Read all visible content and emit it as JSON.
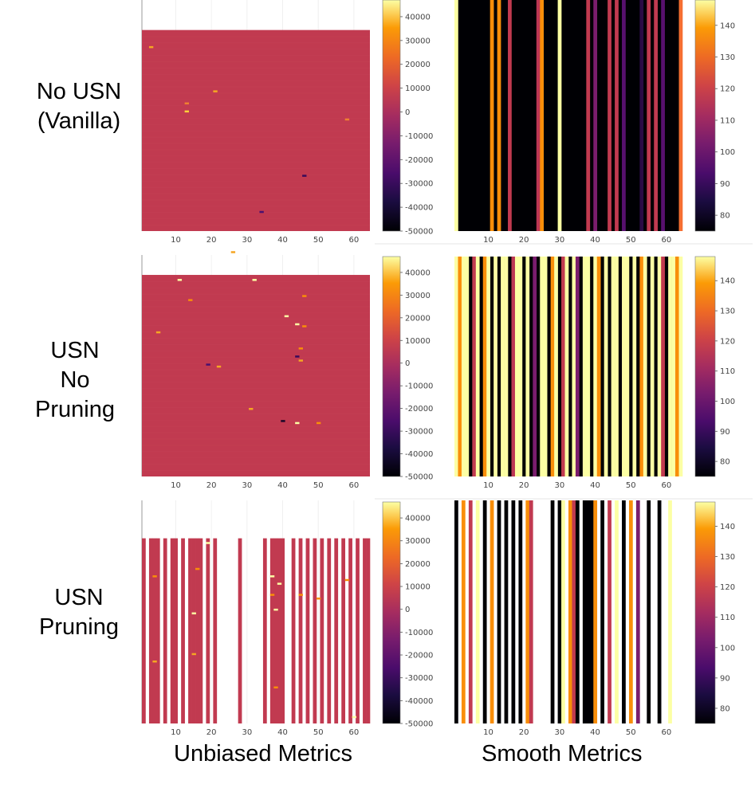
{
  "columns": [
    "Unbiased Metrics",
    "Smooth Metrics"
  ],
  "rows": [
    {
      "label_lines": [
        "No USN",
        "(Vanilla)"
      ]
    },
    {
      "label_lines": [
        "USN",
        "No",
        "Pruning"
      ]
    },
    {
      "label_lines": [
        "USN",
        "Pruning"
      ]
    }
  ],
  "chart_data": [
    {
      "type": "heatmap",
      "title": "No USN (Vanilla) - Unbiased Metrics",
      "x_ticks": [
        10,
        20,
        30,
        40,
        50,
        60
      ],
      "xlim": [
        1,
        64
      ],
      "colorbar": {
        "ticks": [
          "40000",
          "30000",
          "20000",
          "10000",
          "0",
          "-10000",
          "-20000",
          "-30000",
          "-40000",
          "-50000"
        ],
        "range": [
          -50000,
          47000
        ]
      },
      "fill_fraction": 0.87,
      "pruned_columns": [],
      "base_color": "#c13a50",
      "speckles": [
        [
          3,
          8,
          "#f5a623"
        ],
        [
          13,
          40,
          "#ffd23a"
        ],
        [
          13,
          36,
          "#f08030"
        ],
        [
          21,
          30,
          "#f5a623"
        ],
        [
          46,
          72,
          "#3a0a5a"
        ],
        [
          58,
          44,
          "#f08030"
        ],
        [
          34,
          90,
          "#4a1070"
        ],
        [
          26,
          110,
          "#f5a623"
        ]
      ]
    },
    {
      "type": "heatmap",
      "title": "No USN (Vanilla) - Smooth Metrics",
      "x_ticks": [
        10,
        20,
        30,
        40,
        50,
        60
      ],
      "xlim": [
        1,
        64
      ],
      "colorbar": {
        "ticks": [
          "140",
          "130",
          "120",
          "110",
          "100",
          "90",
          "80"
        ],
        "range": [
          75,
          148
        ]
      },
      "stripes": {
        "background": "#000004",
        "columns": [
          [
            1,
            "#fcffa4"
          ],
          [
            11,
            "#f98e09"
          ],
          [
            13,
            "#f98e09"
          ],
          [
            16,
            "#c13a50"
          ],
          [
            24,
            "#bc3754"
          ],
          [
            25,
            "#f98e09"
          ],
          [
            30,
            "#fcffa4"
          ],
          [
            38,
            "#c13a50"
          ],
          [
            40,
            "#7a1d6d"
          ],
          [
            44,
            "#c13a50"
          ],
          [
            46,
            "#c13a50"
          ],
          [
            48,
            "#57106e"
          ],
          [
            53,
            "#2b0b45"
          ],
          [
            55,
            "#c13a50"
          ],
          [
            57,
            "#c13a50"
          ],
          [
            59,
            "#57106e"
          ],
          [
            64,
            "#f56e31"
          ]
        ]
      }
    },
    {
      "type": "heatmap",
      "title": "USN No Pruning - Unbiased Metrics",
      "x_ticks": [
        10,
        20,
        30,
        40,
        50,
        60
      ],
      "xlim": [
        1,
        64
      ],
      "colorbar": {
        "ticks": [
          "40000",
          "30000",
          "20000",
          "10000",
          "0",
          "-10000",
          "-20000",
          "-30000",
          "-40000",
          "-50000"
        ],
        "range": [
          -50000,
          47000
        ]
      },
      "fill_fraction": 0.91,
      "pruned_columns": [],
      "base_color": "#c13a50",
      "speckles": [
        [
          11,
          2,
          "#fcffa4"
        ],
        [
          32,
          2,
          "#fcffa4"
        ],
        [
          14,
          12,
          "#f98e09"
        ],
        [
          46,
          10,
          "#f98e09"
        ],
        [
          46,
          25,
          "#f98e09"
        ],
        [
          44,
          24,
          "#fcffa4"
        ],
        [
          41,
          20,
          "#fcffa4"
        ],
        [
          45,
          36,
          "#f98e09"
        ],
        [
          44,
          40,
          "#3a0a5a"
        ],
        [
          45,
          42,
          "#f5a623"
        ],
        [
          22,
          45,
          "#f5a623"
        ],
        [
          31,
          66,
          "#f5a623"
        ],
        [
          40,
          72,
          "#1a0628"
        ],
        [
          44,
          73,
          "#fcffa4"
        ],
        [
          50,
          73,
          "#f98e09"
        ],
        [
          5,
          28,
          "#f5a623"
        ],
        [
          19,
          44,
          "#4a1070"
        ]
      ]
    },
    {
      "type": "heatmap",
      "title": "USN No Pruning - Smooth Metrics",
      "x_ticks": [
        10,
        20,
        30,
        40,
        50,
        60
      ],
      "xlim": [
        1,
        64
      ],
      "colorbar": {
        "ticks": [
          "140",
          "130",
          "120",
          "110",
          "100",
          "90",
          "80"
        ],
        "range": [
          75,
          148
        ]
      },
      "stripes": {
        "background": "#000004",
        "columns": [
          [
            1,
            "#fcffa4"
          ],
          [
            2,
            "#f98e09"
          ],
          [
            3,
            "#fcffa4"
          ],
          [
            4,
            "#fcffa4"
          ],
          [
            6,
            "#c13a50"
          ],
          [
            7,
            "#fcffa4"
          ],
          [
            9,
            "#f98e09"
          ],
          [
            10,
            "#fcffa4"
          ],
          [
            12,
            "#fcffa4"
          ],
          [
            14,
            "#fcffa4"
          ],
          [
            15,
            "#fcffa4"
          ],
          [
            17,
            "#bc3754"
          ],
          [
            18,
            "#fcffa4"
          ],
          [
            19,
            "#fcffa4"
          ],
          [
            21,
            "#fcffa4"
          ],
          [
            23,
            "#7a1d6d"
          ],
          [
            25,
            "#fcffa4"
          ],
          [
            26,
            "#fcffa4"
          ],
          [
            28,
            "#f98e09"
          ],
          [
            29,
            "#fcffa4"
          ],
          [
            31,
            "#c13a50"
          ],
          [
            32,
            "#fcffa4"
          ],
          [
            34,
            "#fcffa4"
          ],
          [
            35,
            "#7a1d6d"
          ],
          [
            37,
            "#fcffa4"
          ],
          [
            38,
            "#fcffa4"
          ],
          [
            40,
            "#fcffa4"
          ],
          [
            41,
            "#f98e09"
          ],
          [
            43,
            "#fcffa4"
          ],
          [
            45,
            "#fcffa4"
          ],
          [
            46,
            "#fcffa4"
          ],
          [
            48,
            "#fcffa4"
          ],
          [
            49,
            "#fcffa4"
          ],
          [
            51,
            "#fcffa4"
          ],
          [
            53,
            "#f98e09"
          ],
          [
            54,
            "#fcffa4"
          ],
          [
            56,
            "#fcffa4"
          ],
          [
            58,
            "#fcffa4"
          ],
          [
            59,
            "#c13a50"
          ],
          [
            61,
            "#fcffa4"
          ],
          [
            62,
            "#fcffa4"
          ],
          [
            63,
            "#f98e09"
          ],
          [
            64,
            "#fcffa4"
          ]
        ]
      }
    },
    {
      "type": "heatmap",
      "title": "USN Pruning - Unbiased Metrics",
      "x_ticks": [
        10,
        20,
        30,
        40,
        50,
        60
      ],
      "xlim": [
        1,
        64
      ],
      "colorbar": {
        "ticks": [
          "40000",
          "30000",
          "20000",
          "10000",
          "0",
          "-10000",
          "-20000",
          "-30000",
          "-40000",
          "-50000"
        ],
        "range": [
          -50000,
          47000
        ]
      },
      "fill_fraction": 0.83,
      "base_color": "#c13a50",
      "pruned_columns": [
        2,
        6,
        8,
        11,
        13,
        18,
        20,
        22,
        23,
        24,
        25,
        26,
        27,
        29,
        30,
        31,
        32,
        33,
        34,
        36,
        41,
        42,
        44,
        46,
        48,
        50,
        52,
        54,
        56,
        58,
        60,
        62
      ],
      "speckles": [
        [
          4,
          20,
          "#f98e09"
        ],
        [
          16,
          16,
          "#f98e09"
        ],
        [
          15,
          40,
          "#fcffa4"
        ],
        [
          19,
          2,
          "#fcffa4"
        ],
        [
          37,
          20,
          "#fcffa4"
        ],
        [
          39,
          24,
          "#fcffa4"
        ],
        [
          37,
          30,
          "#f98e09"
        ],
        [
          45,
          30,
          "#f98e09"
        ],
        [
          38,
          38,
          "#fcffa4"
        ],
        [
          50,
          32,
          "#f98e09"
        ],
        [
          58,
          22,
          "#f98e09"
        ],
        [
          4,
          66,
          "#f5a623"
        ],
        [
          15,
          62,
          "#f5a623"
        ],
        [
          38,
          80,
          "#f98e09"
        ],
        [
          60,
          96,
          "#fcffa4"
        ]
      ]
    },
    {
      "type": "heatmap",
      "title": "USN Pruning - Smooth Metrics",
      "x_ticks": [
        10,
        20,
        30,
        40,
        50,
        60
      ],
      "xlim": [
        1,
        64
      ],
      "colorbar": {
        "ticks": [
          "140",
          "130",
          "120",
          "110",
          "100",
          "90",
          "80"
        ],
        "range": [
          75,
          148
        ]
      },
      "stripes": {
        "background": "#ffffff",
        "columns": [
          [
            1,
            "#000004"
          ],
          [
            3,
            "#f98e09"
          ],
          [
            5,
            "#c13a50"
          ],
          [
            7,
            "#fcffa4"
          ],
          [
            9,
            "#000004"
          ],
          [
            11,
            "#f98e09"
          ],
          [
            13,
            "#000004"
          ],
          [
            15,
            "#000004"
          ],
          [
            17,
            "#000004"
          ],
          [
            19,
            "#000004"
          ],
          [
            21,
            "#f98e09"
          ],
          [
            22,
            "#c13a50"
          ],
          [
            28,
            "#000004"
          ],
          [
            30,
            "#000004"
          ],
          [
            31,
            "#fcffa4"
          ],
          [
            33,
            "#f98e09"
          ],
          [
            34,
            "#c13a50"
          ],
          [
            35,
            "#000004"
          ],
          [
            37,
            "#000004"
          ],
          [
            38,
            "#000004"
          ],
          [
            39,
            "#000004"
          ],
          [
            40,
            "#f98e09"
          ],
          [
            42,
            "#000004"
          ],
          [
            44,
            "#c13a50"
          ],
          [
            46,
            "#fcffa4"
          ],
          [
            48,
            "#000004"
          ],
          [
            50,
            "#f98e09"
          ],
          [
            52,
            "#7a1d6d"
          ],
          [
            55,
            "#000004"
          ],
          [
            58,
            "#000004"
          ],
          [
            61,
            "#fcffa4"
          ]
        ]
      }
    }
  ]
}
